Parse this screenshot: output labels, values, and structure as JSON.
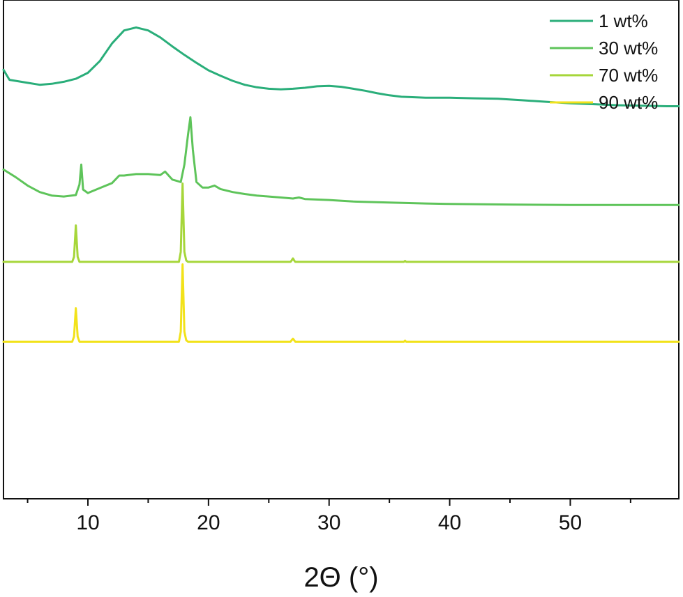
{
  "chart_data": {
    "type": "line",
    "title": "",
    "xlabel": "2Θ (°)",
    "ylabel": "",
    "xlim": [
      3,
      59
    ],
    "x_ticks": [
      10,
      20,
      30,
      40,
      50
    ],
    "x_tick_labels": [
      "10",
      "20",
      "30",
      "40",
      "50"
    ],
    "x_minor_ticks": [
      5,
      15,
      25,
      35,
      45,
      55
    ],
    "y_ticks_shown": false,
    "y_units": "intensity (a.u., stacked)",
    "ylim": [
      0,
      100
    ],
    "grid": false,
    "legend_position": "top-right",
    "series": [
      {
        "name": "1 wt%",
        "color": "#2aae7a",
        "x": [
          3,
          3.5,
          5,
          6,
          7,
          8,
          9,
          10,
          11,
          12,
          13,
          14,
          15,
          16,
          17,
          18,
          19,
          20,
          21,
          22,
          23,
          24,
          25,
          26,
          27,
          28,
          29,
          30,
          31,
          32,
          33,
          34,
          35,
          36,
          38,
          40,
          42,
          44,
          46,
          48,
          50,
          52,
          54,
          56,
          58,
          59
        ],
        "values": [
          86,
          84,
          83.4,
          83,
          83.2,
          83.6,
          84.2,
          85.4,
          87.8,
          91.3,
          93.9,
          94.5,
          93.9,
          92.5,
          90.7,
          89,
          87.4,
          85.9,
          84.8,
          83.8,
          83,
          82.5,
          82.2,
          82.1,
          82.2,
          82.4,
          82.7,
          82.8,
          82.6,
          82.2,
          81.8,
          81.3,
          80.9,
          80.6,
          80.4,
          80.4,
          80.3,
          80.2,
          79.9,
          79.6,
          79.3,
          79.1,
          78.9,
          78.8,
          78.7,
          78.7
        ]
      },
      {
        "name": "30 wt%",
        "color": "#5ec45a",
        "x": [
          3,
          4,
          5,
          6,
          7,
          8,
          9,
          9.3,
          9.45,
          9.6,
          10,
          11,
          12,
          12.6,
          13,
          14,
          15,
          16,
          16.4,
          17,
          17.7,
          18,
          18.3,
          18.5,
          18.7,
          19,
          19.5,
          20,
          20.5,
          21,
          22,
          23,
          24,
          25,
          26,
          27,
          27.5,
          28,
          30,
          32,
          35,
          38,
          40,
          45,
          50,
          55,
          59
        ],
        "values": [
          66,
          64.5,
          62.8,
          61.5,
          60.8,
          60.6,
          60.9,
          63,
          67,
          62,
          61.3,
          62.3,
          63.3,
          64.8,
          64.8,
          65.1,
          65.1,
          64.9,
          65.6,
          64,
          63.5,
          67,
          73,
          76.5,
          70,
          63.5,
          62.4,
          62.4,
          62.8,
          62.1,
          61.5,
          61.1,
          60.8,
          60.6,
          60.4,
          60.2,
          60.4,
          60.1,
          59.9,
          59.6,
          59.4,
          59.2,
          59.1,
          59,
          58.9,
          58.9,
          58.9
        ]
      },
      {
        "name": "70 wt%",
        "color": "#a6d63a",
        "x": [
          3,
          8.7,
          8.85,
          9,
          9.15,
          9.3,
          17.55,
          17.7,
          17.85,
          18,
          18.15,
          18.3,
          26.8,
          26.9,
          27,
          27.1,
          27.2,
          36.2,
          36.3,
          36.4,
          59
        ],
        "values": [
          47.5,
          47.5,
          48.5,
          54.8,
          48.5,
          47.5,
          47.5,
          49.5,
          63.2,
          49.5,
          47.8,
          47.5,
          47.5,
          47.8,
          48.2,
          47.8,
          47.5,
          47.5,
          47.7,
          47.5,
          47.5
        ]
      },
      {
        "name": "90 wt%",
        "color": "#f2e21a",
        "x": [
          3,
          8.7,
          8.85,
          9,
          9.15,
          9.3,
          17.55,
          17.7,
          17.85,
          18,
          18.15,
          18.3,
          26.8,
          26.9,
          27,
          27.1,
          27.2,
          36.2,
          36.3,
          36.4,
          59
        ],
        "values": [
          31.5,
          31.5,
          32.5,
          38.2,
          32.5,
          31.5,
          31.5,
          33.5,
          47,
          33.5,
          31.8,
          31.5,
          31.5,
          31.8,
          32.1,
          31.8,
          31.5,
          31.5,
          31.7,
          31.5,
          31.5
        ]
      }
    ]
  }
}
